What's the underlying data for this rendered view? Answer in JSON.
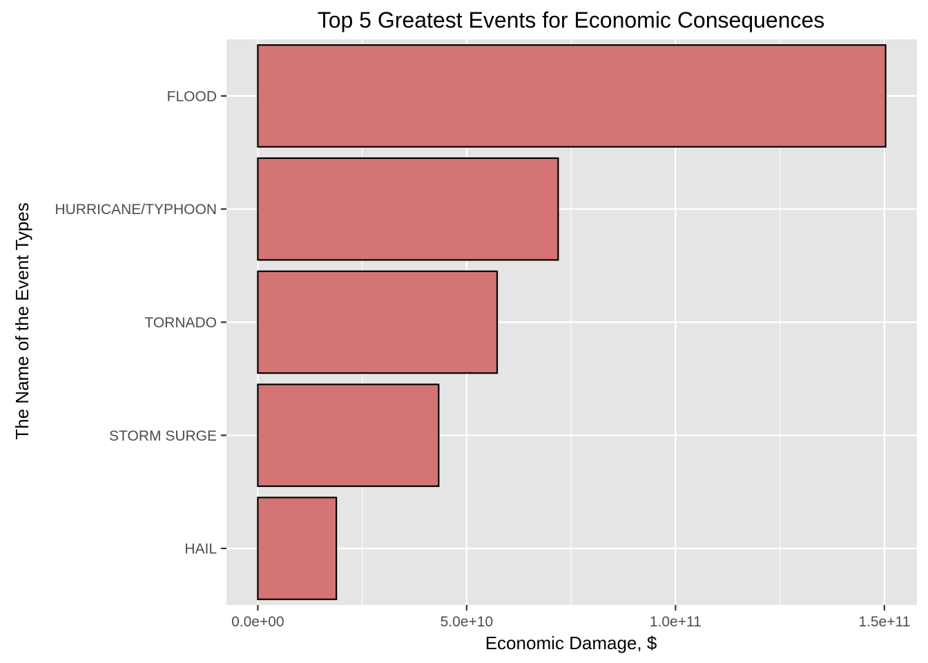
{
  "chart_data": {
    "type": "bar",
    "orientation": "horizontal",
    "title": "Top 5 Greatest Events for Economic Consequences",
    "xlabel": "Economic Damage, $",
    "ylabel": "The Name of the Event Types",
    "categories": [
      "FLOOD",
      "HURRICANE/TYPHOON",
      "TORNADO",
      "STORM SURGE",
      "HAIL"
    ],
    "values": [
      150300000000,
      71900000000,
      57300000000,
      43300000000,
      18800000000
    ],
    "xlim": [
      -7500000000,
      157800000000
    ],
    "x_ticks": [
      0,
      50000000000,
      100000000000,
      150000000000
    ],
    "x_tick_labels": [
      "0.0e+00",
      "5.0e+10",
      "1.0e+11",
      "1.5e+11"
    ],
    "x_minor_ticks": [
      25000000000,
      75000000000,
      125000000000
    ],
    "grid": true,
    "legend": "none",
    "colors": {
      "bar_fill": "#d47474",
      "bar_outline": "#000000",
      "panel": "#e5e5e5",
      "grid": "#ffffff"
    }
  }
}
